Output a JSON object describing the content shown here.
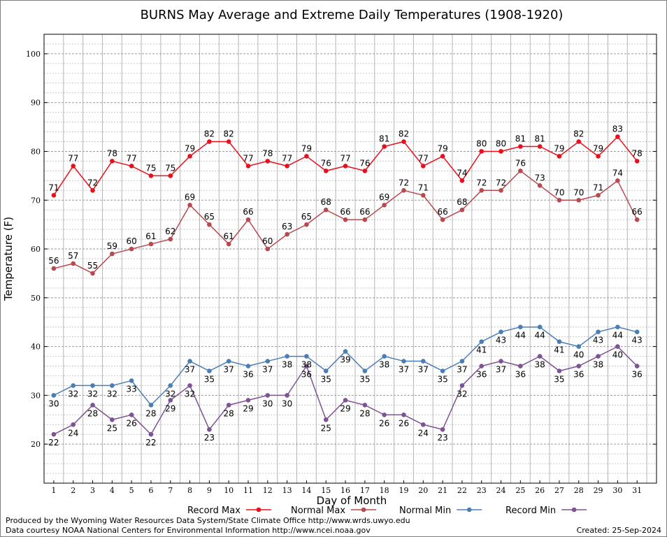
{
  "chart_data": {
    "type": "line",
    "title": "BURNS May Average and Extreme Daily Temperatures (1908-1920)",
    "xlabel": "Day of Month",
    "ylabel": "Temperature (F)",
    "ylim": [
      12,
      104
    ],
    "yticks": [
      20,
      30,
      40,
      50,
      60,
      70,
      80,
      90,
      100
    ],
    "grid": true,
    "legend_position": "bottom",
    "x": [
      1,
      2,
      3,
      4,
      5,
      6,
      7,
      8,
      9,
      10,
      11,
      12,
      13,
      14,
      15,
      16,
      17,
      18,
      19,
      20,
      21,
      22,
      23,
      24,
      25,
      26,
      27,
      28,
      29,
      30,
      31
    ],
    "series": [
      {
        "name": "Record Max",
        "color": "#e8101c",
        "values": [
          71,
          77,
          72,
          78,
          77,
          75,
          75,
          79,
          82,
          82,
          77,
          78,
          77,
          79,
          76,
          77,
          76,
          81,
          82,
          77,
          79,
          74,
          80,
          80,
          81,
          81,
          79,
          82,
          79,
          83,
          78
        ]
      },
      {
        "name": "Normal Max",
        "color": "#b84a4f",
        "values": [
          56,
          57,
          55,
          59,
          60,
          61,
          62,
          69,
          65,
          61,
          66,
          60,
          63,
          65,
          68,
          66,
          66,
          69,
          72,
          71,
          66,
          68,
          72,
          72,
          76,
          73,
          70,
          70,
          71,
          74,
          66
        ]
      },
      {
        "name": "Normal Min",
        "color": "#4a7fb5",
        "values": [
          30,
          32,
          32,
          32,
          33,
          28,
          32,
          37,
          35,
          37,
          36,
          37,
          38,
          38,
          35,
          39,
          35,
          38,
          37,
          37,
          35,
          37,
          41,
          43,
          44,
          44,
          41,
          40,
          43,
          44,
          43
        ]
      },
      {
        "name": "Record Min",
        "color": "#7d5396",
        "values": [
          22,
          24,
          28,
          25,
          26,
          22,
          29,
          32,
          23,
          28,
          29,
          30,
          30,
          36,
          25,
          29,
          28,
          26,
          26,
          24,
          23,
          32,
          36,
          37,
          36,
          38,
          35,
          36,
          38,
          40,
          36
        ]
      }
    ]
  },
  "footer": {
    "credit1": "Produced by the Wyoming Water Resources Data System/State Climate Office http://www.wrds.uwyo.edu",
    "credit2": "Data courtesy NOAA National Centers for Environmental Information http://www.ncei.noaa.gov",
    "created": "Created:  25-Sep-2024"
  }
}
